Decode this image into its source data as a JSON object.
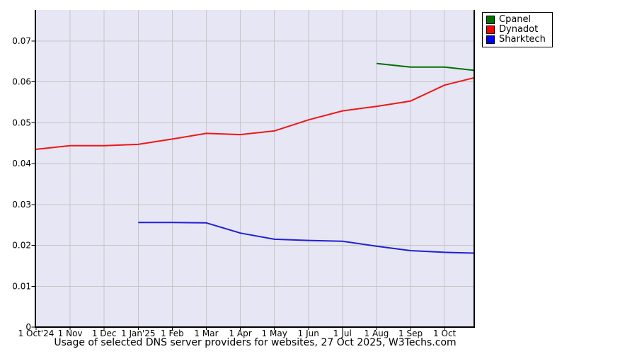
{
  "page": {
    "background": "#ffffff"
  },
  "chart_data": {
    "type": "line",
    "title": "Usage of selected DNS server providers for websites, 27 Oct 2025, W3Techs.com",
    "grid": true,
    "legend_position": "top-right-outside",
    "x_axis": {
      "tick_labels": [
        "1 Oct'24",
        "1 Nov",
        "1 Dec",
        "1 Jan'25",
        "1 Feb",
        "1 Mar",
        "1 Apr",
        "1 May",
        "1 Jun",
        "1 Jul",
        "1 Aug",
        "1 Sep",
        "1 Oct"
      ],
      "tick_positions_months": [
        0,
        1,
        2,
        3,
        4,
        5,
        6,
        7,
        8,
        9,
        10,
        11,
        12
      ],
      "xlim_months": [
        0,
        12.87
      ]
    },
    "y_axis": {
      "tick_labels": [
        "0",
        "0.01",
        "0.02",
        "0.03",
        "0.04",
        "0.05",
        "0.06",
        "0.07"
      ],
      "tick_values": [
        0,
        0.01,
        0.02,
        0.03,
        0.04,
        0.05,
        0.06,
        0.07
      ],
      "ylim": [
        0,
        0.0776
      ]
    },
    "series": [
      {
        "name": "Cpanel",
        "color": "#007000",
        "swatch_color": "#007000",
        "x_months": [
          10,
          11,
          12,
          12.87
        ],
        "values": [
          0.0645,
          0.0636,
          0.0636,
          0.0628
        ]
      },
      {
        "name": "Dynadot",
        "color": "#ee1717",
        "swatch_color": "#ff0000",
        "x_months": [
          0,
          1,
          2,
          3,
          4,
          5,
          6,
          7,
          8,
          9,
          10,
          11,
          12,
          12.87
        ],
        "values": [
          0.0435,
          0.0444,
          0.0444,
          0.0447,
          0.046,
          0.0474,
          0.0471,
          0.048,
          0.0507,
          0.0529,
          0.054,
          0.0553,
          0.0592,
          0.061
        ]
      },
      {
        "name": "Sharktech",
        "color": "#2020d0",
        "swatch_color": "#0000ff",
        "x_months": [
          3,
          4,
          5,
          6,
          7,
          8,
          9,
          10,
          11,
          12,
          12.87
        ],
        "values": [
          0.0256,
          0.0256,
          0.0255,
          0.023,
          0.0215,
          0.0212,
          0.021,
          0.0198,
          0.0187,
          0.0183,
          0.0181
        ]
      }
    ],
    "colors": {
      "plot_background": "#e6e6f4",
      "gridline": "#c6c6c6",
      "axis": "#000000",
      "legend_border": "#000000",
      "legend_background": "#ffffff"
    }
  }
}
